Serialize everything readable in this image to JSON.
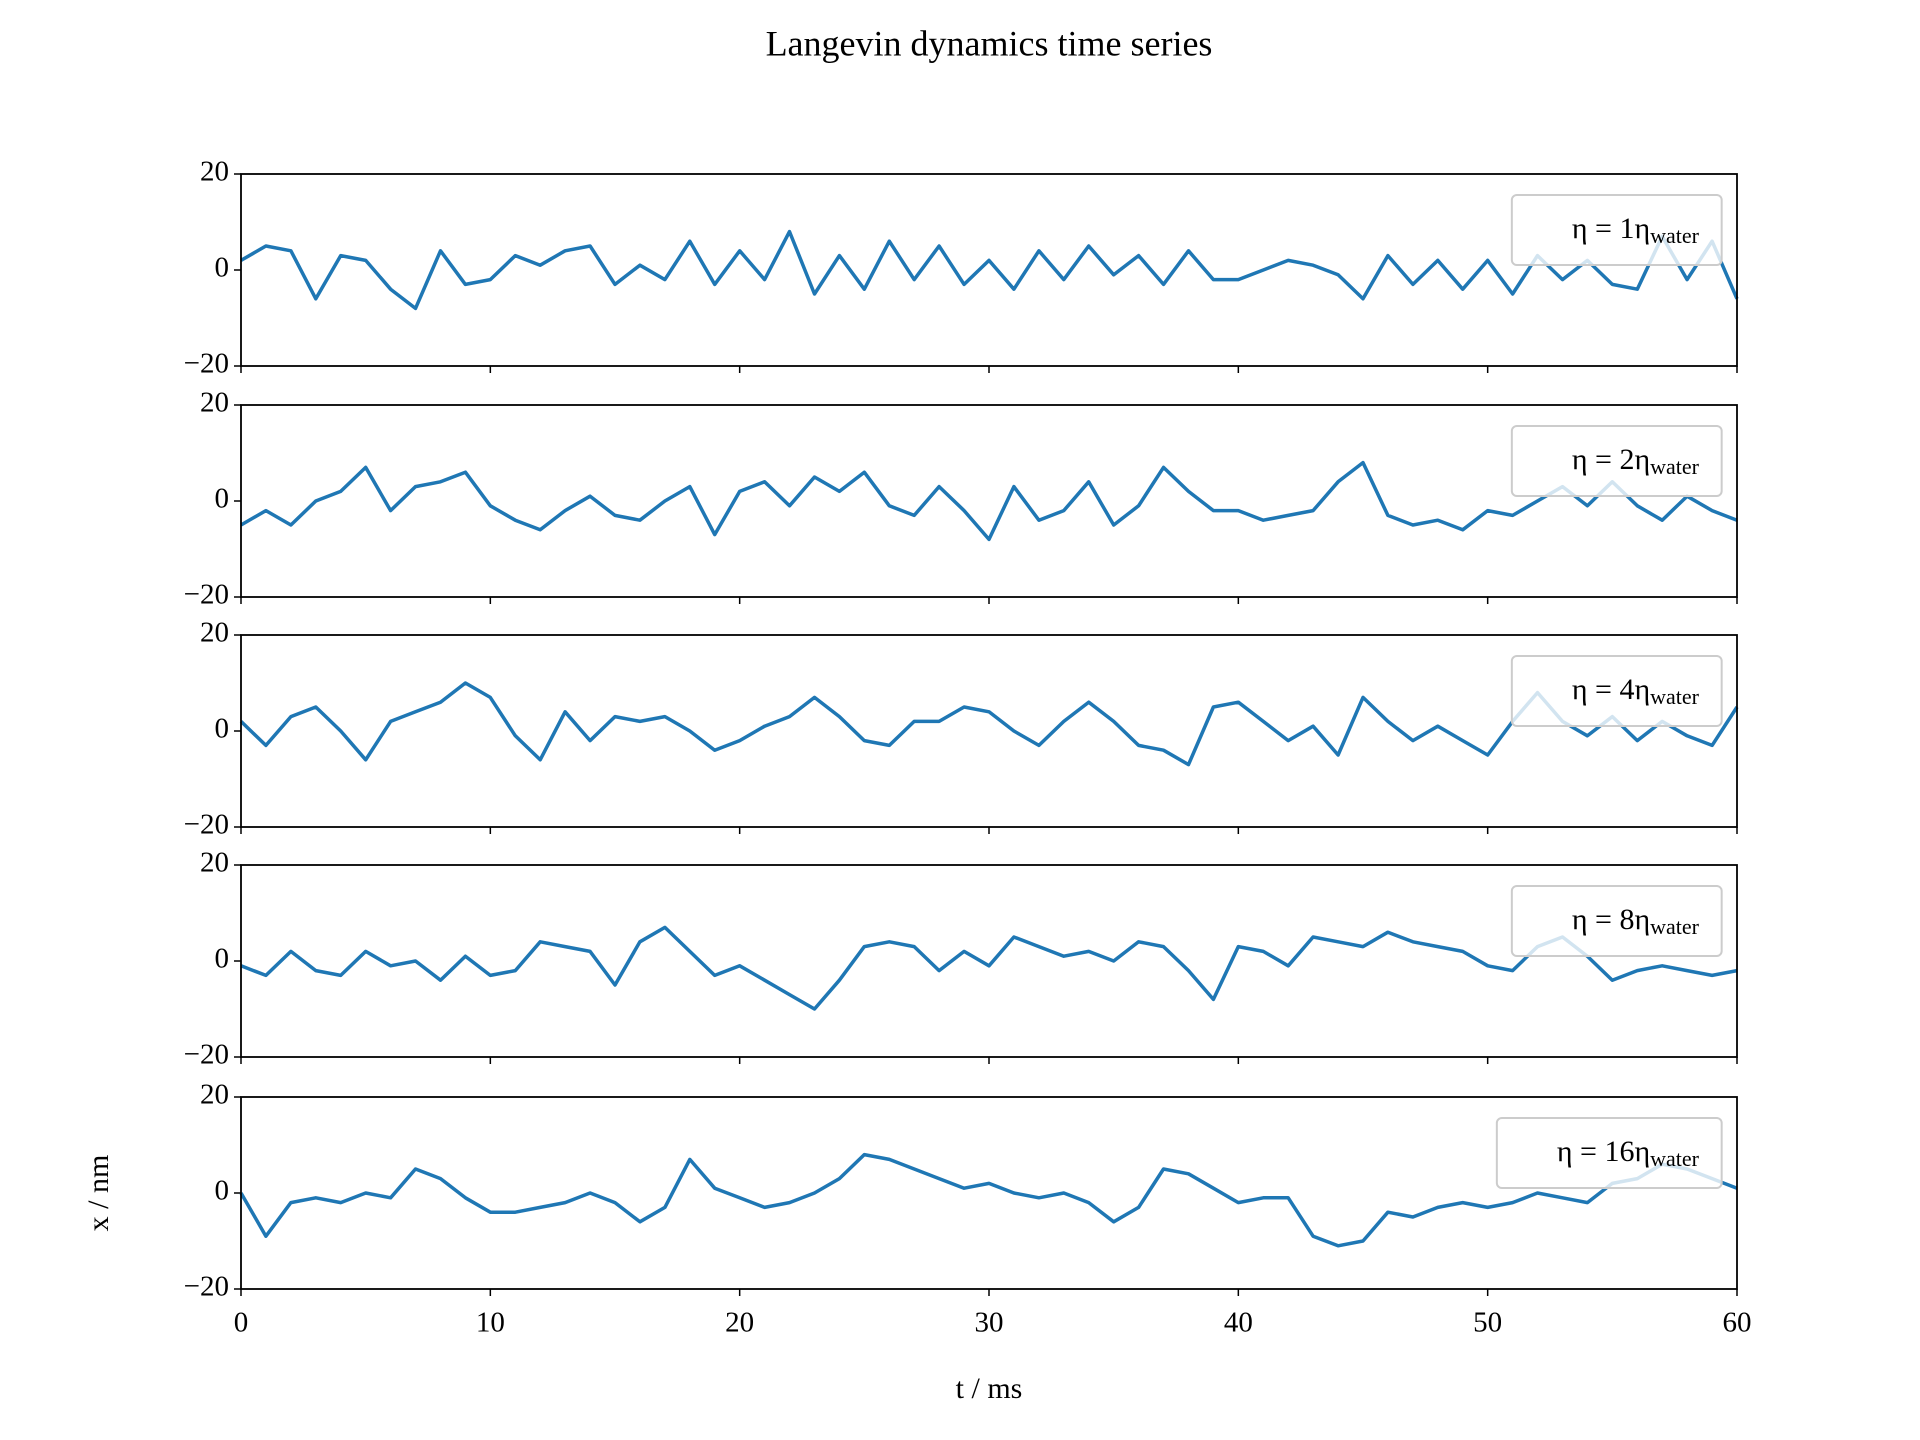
{
  "title": "Langevin dynamics time series",
  "chart_data": [
    {
      "type": "line",
      "legend": "upper right",
      "x": [
        0,
        1,
        2,
        3,
        4,
        5,
        6,
        7,
        8,
        9,
        10,
        11,
        12,
        13,
        14,
        15,
        16,
        17,
        18,
        19,
        20,
        21,
        22,
        23,
        24,
        25,
        26,
        27,
        28,
        29,
        30,
        31,
        32,
        33,
        34,
        35,
        36,
        37,
        38,
        39,
        40,
        41,
        42,
        43,
        44,
        45,
        46,
        47,
        48,
        49,
        50,
        51,
        52,
        53,
        54,
        55,
        56,
        57,
        58,
        59,
        60
      ],
      "series": [
        {
          "name": "η = 1η",
          "name_sub": "water",
          "color": "#1f77b4",
          "values": [
            2,
            5,
            4,
            -6,
            3,
            2,
            -4,
            -8,
            4,
            -3,
            -2,
            3,
            1,
            4,
            5,
            -3,
            1,
            -2,
            6,
            -3,
            4,
            -2,
            8,
            -5,
            3,
            -4,
            6,
            -2,
            5,
            -3,
            2,
            -4,
            4,
            -2,
            5,
            -1,
            3,
            -3,
            4,
            -2,
            -2,
            0,
            2,
            1,
            -1,
            -6,
            3,
            -3,
            2,
            -4,
            2,
            -5,
            3,
            -2,
            2,
            -3,
            -4,
            7,
            -2,
            6,
            -6
          ]
        }
      ],
      "xlim": [
        0,
        60
      ],
      "xticks": [
        0,
        10,
        20,
        30,
        40,
        50,
        60
      ],
      "ylim": [
        -20,
        20
      ],
      "yticks": [
        {
          "value": -20,
          "label": "−20"
        },
        0,
        20
      ]
    },
    {
      "type": "line",
      "legend": "upper right",
      "x": [
        0,
        1,
        2,
        3,
        4,
        5,
        6,
        7,
        8,
        9,
        10,
        11,
        12,
        13,
        14,
        15,
        16,
        17,
        18,
        19,
        20,
        21,
        22,
        23,
        24,
        25,
        26,
        27,
        28,
        29,
        30,
        31,
        32,
        33,
        34,
        35,
        36,
        37,
        38,
        39,
        40,
        41,
        42,
        43,
        44,
        45,
        46,
        47,
        48,
        49,
        50,
        51,
        52,
        53,
        54,
        55,
        56,
        57,
        58,
        59,
        60
      ],
      "series": [
        {
          "name": "η = 2η",
          "name_sub": "water",
          "color": "#1f77b4",
          "values": [
            -5,
            -2,
            -5,
            0,
            2,
            7,
            -2,
            3,
            4,
            6,
            -1,
            -4,
            -6,
            -2,
            1,
            -3,
            -4,
            0,
            3,
            -7,
            2,
            4,
            -1,
            5,
            2,
            6,
            -1,
            -3,
            3,
            -2,
            -8,
            3,
            -4,
            -2,
            4,
            -5,
            -1,
            7,
            2,
            -2,
            -2,
            -4,
            -3,
            -2,
            4,
            8,
            -3,
            -5,
            -4,
            -6,
            -2,
            -3,
            0,
            3,
            -1,
            4,
            -1,
            -4,
            1,
            -2,
            -4
          ]
        }
      ],
      "xlim": [
        0,
        60
      ],
      "xticks": [
        0,
        10,
        20,
        30,
        40,
        50,
        60
      ],
      "ylim": [
        -20,
        20
      ],
      "yticks": [
        {
          "value": -20,
          "label": "−20"
        },
        0,
        20
      ]
    },
    {
      "type": "line",
      "legend": "upper right",
      "x": [
        0,
        1,
        2,
        3,
        4,
        5,
        6,
        7,
        8,
        9,
        10,
        11,
        12,
        13,
        14,
        15,
        16,
        17,
        18,
        19,
        20,
        21,
        22,
        23,
        24,
        25,
        26,
        27,
        28,
        29,
        30,
        31,
        32,
        33,
        34,
        35,
        36,
        37,
        38,
        39,
        40,
        41,
        42,
        43,
        44,
        45,
        46,
        47,
        48,
        49,
        50,
        51,
        52,
        53,
        54,
        55,
        56,
        57,
        58,
        59,
        60
      ],
      "series": [
        {
          "name": "η = 4η",
          "name_sub": "water",
          "color": "#1f77b4",
          "values": [
            2,
            -3,
            3,
            5,
            0,
            -6,
            2,
            4,
            6,
            10,
            7,
            -1,
            -6,
            4,
            -2,
            3,
            2,
            3,
            0,
            -4,
            -2,
            1,
            3,
            7,
            3,
            -2,
            -3,
            2,
            2,
            5,
            4,
            0,
            -3,
            2,
            6,
            2,
            -3,
            -4,
            -7,
            5,
            6,
            2,
            -2,
            1,
            -5,
            7,
            2,
            -2,
            1,
            -2,
            -5,
            2,
            8,
            2,
            -1,
            3,
            -2,
            2,
            -1,
            -3,
            5
          ]
        }
      ],
      "xlim": [
        0,
        60
      ],
      "xticks": [
        0,
        10,
        20,
        30,
        40,
        50,
        60
      ],
      "ylim": [
        -20,
        20
      ],
      "yticks": [
        {
          "value": -20,
          "label": "−20"
        },
        0,
        20
      ]
    },
    {
      "type": "line",
      "legend": "upper right",
      "x": [
        0,
        1,
        2,
        3,
        4,
        5,
        6,
        7,
        8,
        9,
        10,
        11,
        12,
        13,
        14,
        15,
        16,
        17,
        18,
        19,
        20,
        21,
        22,
        23,
        24,
        25,
        26,
        27,
        28,
        29,
        30,
        31,
        32,
        33,
        34,
        35,
        36,
        37,
        38,
        39,
        40,
        41,
        42,
        43,
        44,
        45,
        46,
        47,
        48,
        49,
        50,
        51,
        52,
        53,
        54,
        55,
        56,
        57,
        58,
        59,
        60
      ],
      "series": [
        {
          "name": "η = 8η",
          "name_sub": "water",
          "color": "#1f77b4",
          "values": [
            -1,
            -3,
            2,
            -2,
            -3,
            2,
            -1,
            0,
            -4,
            1,
            -3,
            -2,
            4,
            3,
            2,
            -5,
            4,
            7,
            2,
            -3,
            -1,
            -4,
            -7,
            -10,
            -4,
            3,
            4,
            3,
            -2,
            2,
            -1,
            5,
            3,
            1,
            2,
            0,
            4,
            3,
            -2,
            -8,
            3,
            2,
            -1,
            5,
            4,
            3,
            6,
            4,
            3,
            2,
            -1,
            -2,
            3,
            5,
            1,
            -4,
            -2,
            -1,
            -2,
            -3,
            -2
          ]
        }
      ],
      "xlim": [
        0,
        60
      ],
      "xticks": [
        0,
        10,
        20,
        30,
        40,
        50,
        60
      ],
      "ylim": [
        -20,
        20
      ],
      "yticks": [
        {
          "value": -20,
          "label": "−20"
        },
        0,
        20
      ]
    },
    {
      "type": "line",
      "legend": "upper right",
      "x": [
        0,
        1,
        2,
        3,
        4,
        5,
        6,
        7,
        8,
        9,
        10,
        11,
        12,
        13,
        14,
        15,
        16,
        17,
        18,
        19,
        20,
        21,
        22,
        23,
        24,
        25,
        26,
        27,
        28,
        29,
        30,
        31,
        32,
        33,
        34,
        35,
        36,
        37,
        38,
        39,
        40,
        41,
        42,
        43,
        44,
        45,
        46,
        47,
        48,
        49,
        50,
        51,
        52,
        53,
        54,
        55,
        56,
        57,
        58,
        59,
        60
      ],
      "series": [
        {
          "name": "η = 16η",
          "name_sub": "water",
          "color": "#1f77b4",
          "values": [
            0,
            -9,
            -2,
            -1,
            -2,
            0,
            -1,
            5,
            3,
            -1,
            -4,
            -4,
            -3,
            -2,
            0,
            -2,
            -6,
            -3,
            7,
            1,
            -1,
            -3,
            -2,
            0,
            3,
            8,
            7,
            5,
            3,
            1,
            2,
            0,
            -1,
            0,
            -2,
            -6,
            -3,
            5,
            4,
            1,
            -2,
            -1,
            -1,
            -9,
            -11,
            -10,
            -4,
            -5,
            -3,
            -2,
            -3,
            -2,
            0,
            -1,
            -2,
            2,
            3,
            6,
            5,
            3,
            1
          ]
        }
      ],
      "xlim": [
        0,
        60
      ],
      "xticks": [
        0,
        10,
        20,
        30,
        40,
        50,
        60
      ],
      "ylim": [
        -20,
        20
      ],
      "yticks": [
        {
          "value": -20,
          "label": "−20"
        },
        0,
        20
      ],
      "xlabel": "t / ms",
      "ylabel": "x / nm"
    }
  ]
}
